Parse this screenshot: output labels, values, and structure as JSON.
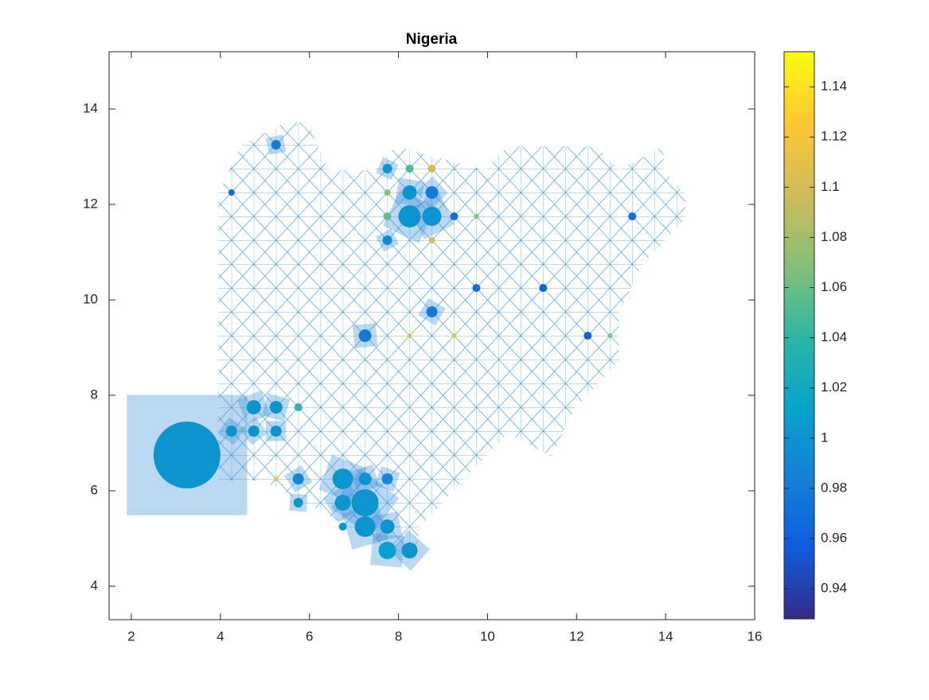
{
  "chart_data": {
    "type": "scatter",
    "title": "Nigeria",
    "x": [
      3.25,
      7.25,
      7.25,
      6.75,
      6.75,
      7.75,
      8.25,
      7.75,
      8.25,
      8.75,
      8.25,
      8.75,
      7.25,
      8.75,
      4.75,
      5.25,
      4.75,
      5.25,
      4.25,
      7.25,
      7.75,
      5.75,
      5.75,
      6.75,
      5.25,
      7.75,
      7.75,
      8.25,
      8.75,
      8.75,
      9.25,
      13.25,
      11.25,
      9.75,
      12.25,
      5.75,
      8.25,
      9.25,
      5.25,
      4.25,
      7.75,
      7.75,
      9.75,
      12.75
    ],
    "y": [
      6.75,
      5.75,
      5.25,
      6.25,
      5.75,
      4.75,
      4.75,
      5.25,
      11.75,
      11.75,
      12.25,
      12.25,
      9.25,
      9.75,
      7.75,
      7.75,
      7.25,
      7.25,
      7.25,
      6.25,
      6.25,
      6.25,
      5.75,
      5.25,
      13.25,
      12.75,
      11.25,
      12.75,
      12.75,
      11.25,
      11.75,
      11.75,
      10.25,
      10.25,
      9.25,
      7.75,
      9.25,
      9.25,
      6.25,
      12.25,
      12.25,
      11.75,
      11.75,
      9.25
    ],
    "sizes": [
      42,
      17,
      13,
      13,
      10,
      11,
      10,
      9,
      14,
      12,
      9,
      8,
      8,
      7,
      9,
      8,
      7,
      7,
      7,
      8,
      7,
      7,
      6,
      5,
      6,
      6,
      6,
      5,
      5,
      4,
      5,
      5,
      5,
      5,
      5,
      5,
      3,
      3,
      3,
      4,
      4,
      5,
      3,
      3
    ],
    "colors": [
      1.0,
      1.0,
      1.0,
      1.0,
      1.0,
      1.01,
      1.0,
      1.0,
      1.0,
      1.0,
      1.0,
      0.98,
      0.98,
      0.98,
      1.0,
      1.0,
      1.0,
      1.0,
      1.0,
      1.0,
      0.99,
      0.99,
      1.0,
      1.0,
      0.98,
      1.0,
      0.99,
      1.05,
      1.1,
      1.1,
      0.97,
      0.97,
      0.96,
      0.97,
      0.96,
      1.04,
      1.11,
      1.11,
      1.12,
      0.97,
      1.07,
      1.06,
      1.07,
      1.07
    ],
    "xlim": [
      1.5,
      16
    ],
    "xticks": [
      2,
      4,
      6,
      8,
      10,
      12,
      14,
      16
    ],
    "ylim": [
      3.3,
      15.2
    ],
    "yticks": [
      4,
      6,
      8,
      10,
      12,
      14
    ],
    "clim": [
      0.928,
      1.154
    ],
    "cticks": [
      0.94,
      0.96,
      0.98,
      1,
      1.02,
      1.04,
      1.06,
      1.08,
      1.1,
      1.12,
      1.14
    ],
    "colormap": "parula"
  }
}
